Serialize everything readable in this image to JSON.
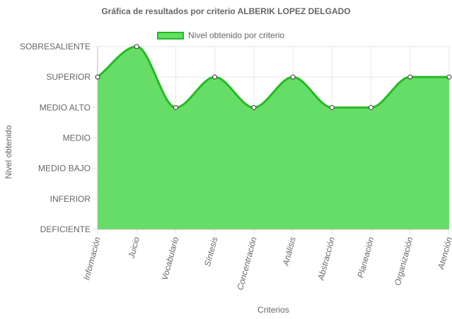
{
  "chart_data": {
    "type": "area",
    "title": "Gráfica de resultados por criterio ALBERIK LOPEZ DELGADO",
    "xlabel": "Criterios",
    "ylabel": "Nivel obtenido",
    "y_levels": [
      "DEFICIENTE",
      "INFERIOR",
      "MEDIO BAJO",
      "MEDIO",
      "MEDIO ALTO",
      "SUPERIOR",
      "SOBRESALIENTE"
    ],
    "ylim": [
      0,
      6
    ],
    "categories": [
      "Información",
      "Juicio",
      "Vocabulario",
      "Síntesis",
      "Concentración",
      "Análisis",
      "Abstracción",
      "Planeación",
      "Organización",
      "Atención"
    ],
    "series": [
      {
        "name": "Nivel obtenido por criterio",
        "values": [
          5,
          6,
          4,
          5,
          4,
          5,
          4,
          4,
          5,
          5
        ],
        "value_labels": [
          "SUPERIOR",
          "SOBRESALIENTE",
          "MEDIO ALTO",
          "SUPERIOR",
          "MEDIO ALTO",
          "SUPERIOR",
          "MEDIO ALTO",
          "MEDIO ALTO",
          "SUPERIOR",
          "SUPERIOR"
        ]
      }
    ],
    "legend_position": "top",
    "grid": true,
    "colors": {
      "fill": "#66dd66",
      "line": "#22bb22",
      "grid": "#e6e6e6",
      "text": "#666666",
      "point_fill": "#ffffff",
      "point_stroke": "#333333"
    }
  }
}
